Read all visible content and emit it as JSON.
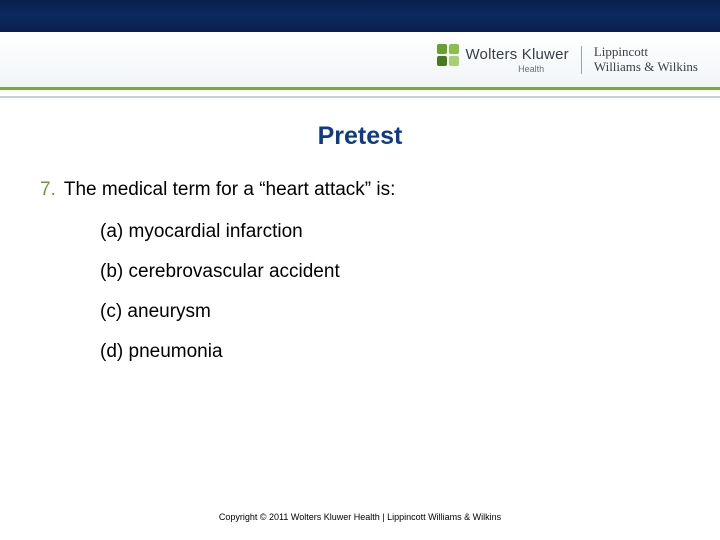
{
  "header": {
    "brand_left": "Wolters Kluwer",
    "brand_left_sub": "Health",
    "brand_right_line1": "Lippincott",
    "brand_right_line2": "Williams & Wilkins",
    "colors": {
      "blue_bar": "#0a1f4d",
      "green_rule": "#7aa843",
      "logo_q1": "#6aa030",
      "logo_q2": "#8bbf4a",
      "logo_q3": "#4a7a1f",
      "logo_q4": "#a8d070"
    }
  },
  "slide": {
    "title": "Pretest",
    "title_color": "#0d3a8a",
    "question_number": "7.",
    "question_number_color": "#6aa030",
    "question_text": "The medical term for a “heart attack” is:",
    "options": [
      "(a) myocardial infarction",
      "(b) cerebrovascular accident",
      "(c) aneurysm",
      "(d) pneumonia"
    ],
    "body_fontsize_pt": 14,
    "title_fontsize_pt": 19
  },
  "footer": {
    "text": "Copyright © 2011 Wolters Kluwer Health | Lippincott Williams & Wilkins"
  }
}
